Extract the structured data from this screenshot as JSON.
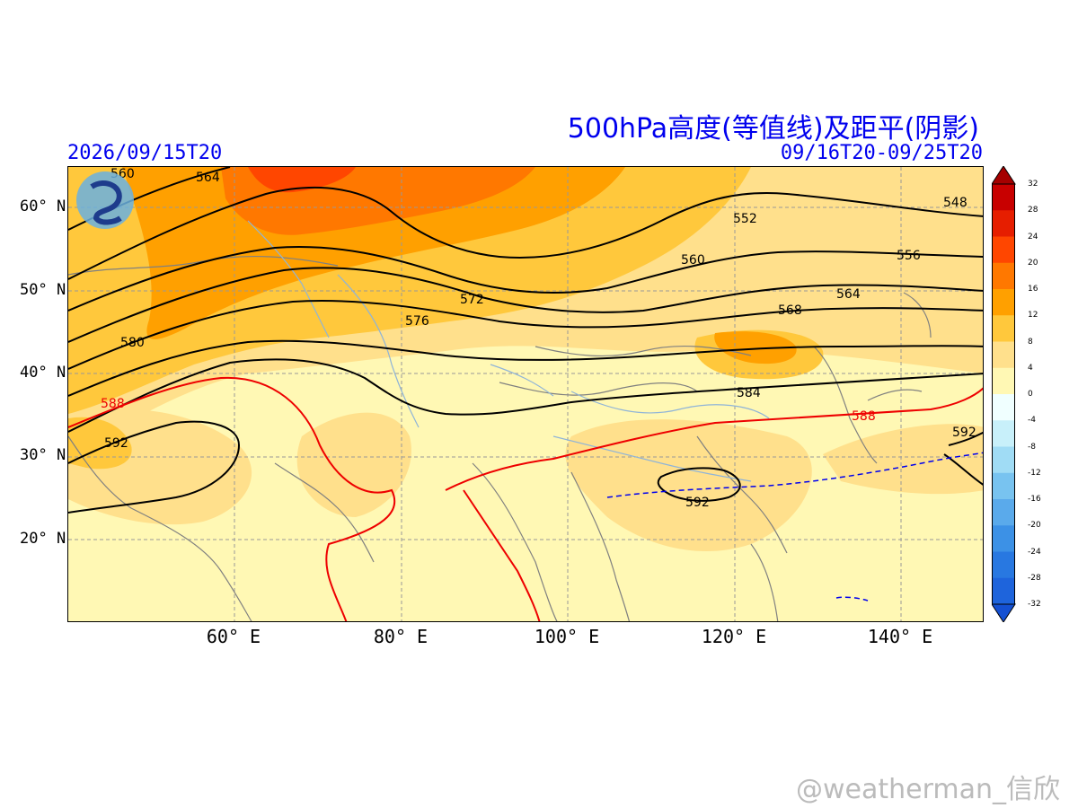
{
  "title": "500hPa高度(等值线)及距平(阴影)",
  "init_time": "2026/09/15T20",
  "valid_period": "09/16T20-09/25T20",
  "watermark": "@weatherman_信欣",
  "map": {
    "lon_range": [
      40,
      150
    ],
    "lat_range": [
      10,
      65
    ],
    "lat_ticks": [
      {
        "value": 60,
        "label": "60° N"
      },
      {
        "value": 50,
        "label": "50° N"
      },
      {
        "value": 40,
        "label": "40° N"
      },
      {
        "value": 30,
        "label": "30° N"
      },
      {
        "value": 20,
        "label": "20° N"
      }
    ],
    "lon_ticks": [
      {
        "value": 60,
        "label": "60° E"
      },
      {
        "value": 80,
        "label": "80° E"
      },
      {
        "value": 100,
        "label": "100° E"
      },
      {
        "value": 120,
        "label": "120° E"
      },
      {
        "value": 140,
        "label": "140° E"
      }
    ],
    "grid": true,
    "contour_labels": [
      "560",
      "564",
      "580",
      "588",
      "592",
      "572",
      "576",
      "552",
      "560",
      "548",
      "556",
      "564",
      "568",
      "584",
      "588",
      "592",
      "592"
    ],
    "colors": {
      "contour": "#000000",
      "contour_588": "#ee0000",
      "anomaly_neg": "#0000ee",
      "grid": "#999999",
      "coast": "#808080",
      "river": "#8fb4d8",
      "text_blue": "#0000ee"
    }
  },
  "colorbar": {
    "levels": [
      "32",
      "28",
      "24",
      "20",
      "16",
      "12",
      "8",
      "4",
      "0",
      "-4",
      "-8",
      "-12",
      "-16",
      "-20",
      "-24",
      "-28",
      "-32"
    ],
    "colors": [
      "#a50000",
      "#c80000",
      "#e61e00",
      "#ff4600",
      "#ff7800",
      "#ffa000",
      "#ffc83c",
      "#ffe08c",
      "#fff8b4",
      "#f0ffff",
      "#c8f0fa",
      "#a0dcf5",
      "#78c3f0",
      "#5aaaeb",
      "#3c91e6",
      "#2878e1",
      "#1e64dc",
      "#1450d2"
    ]
  }
}
